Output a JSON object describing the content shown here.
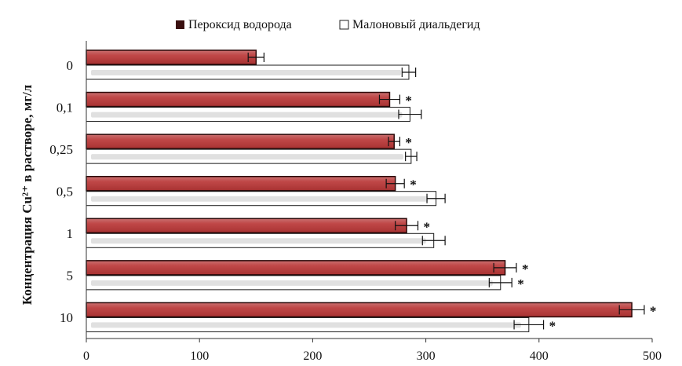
{
  "chart_data": {
    "type": "bar",
    "orientation": "horizontal",
    "categories": [
      "0",
      "0,1",
      "0,25",
      "0,5",
      "1",
      "5",
      "10"
    ],
    "series": [
      {
        "name": "Пероксид водорода",
        "values": [
          150,
          268,
          272,
          273,
          283,
          370,
          482
        ],
        "errors": [
          7,
          9,
          5,
          8,
          10,
          10,
          11
        ],
        "significance": [
          "",
          "*",
          "*",
          "*",
          "*",
          "*",
          "*"
        ],
        "color": "#b23b3b"
      },
      {
        "name": "Малоновый диальдегид",
        "values": [
          285,
          286,
          287,
          309,
          307,
          366,
          391
        ],
        "errors": [
          6,
          10,
          5,
          8,
          10,
          10,
          13
        ],
        "significance": [
          "",
          "",
          "",
          "",
          "",
          "*",
          "*"
        ],
        "color": "#ffffff"
      }
    ],
    "ylabel": "Концентрация Cu²⁺ в растворе, мг/л",
    "xlabel": "",
    "xlim": [
      0,
      500
    ],
    "xticks": [
      0,
      100,
      200,
      300,
      400,
      500
    ],
    "grid": false,
    "legend_position": "top"
  }
}
